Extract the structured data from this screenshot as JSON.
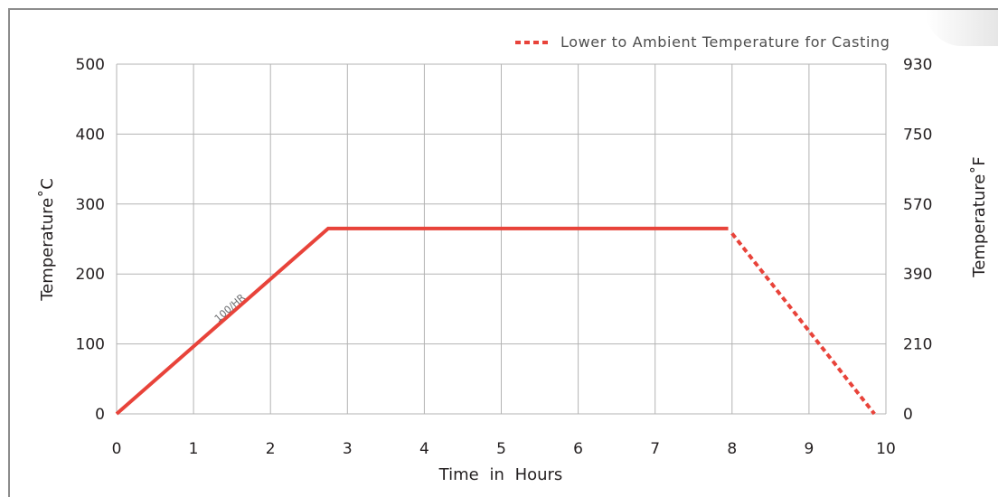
{
  "chart_data": {
    "type": "line",
    "xlabel": "Time in Hours",
    "ylabel": "Temperature˚C",
    "ylabel_right": "Temperature˚F",
    "xlim": [
      0,
      10
    ],
    "ylim": [
      0,
      500
    ],
    "x_ticks": [
      "0",
      "1",
      "2",
      "3",
      "4",
      "5",
      "6",
      "7",
      "8",
      "9",
      "10"
    ],
    "y_ticks": [
      "0",
      "100",
      "200",
      "300",
      "400",
      "500"
    ],
    "y_right_ticks": [
      "0",
      "210",
      "390",
      "570",
      "750",
      "930"
    ],
    "grid": true,
    "legend_position": "top-right",
    "series": [
      {
        "style": "solid",
        "color": "#e8433a",
        "x": [
          0,
          2.75,
          7.95
        ],
        "y": [
          0,
          265,
          265
        ]
      },
      {
        "name": "Lower to Ambient Temperature for Casting",
        "style": "dotted",
        "color": "#e8433a",
        "x": [
          8.0,
          9.85
        ],
        "y": [
          258,
          0
        ]
      }
    ],
    "annotations": [
      {
        "text": "100/HR",
        "x": 1.5,
        "y": 140
      }
    ]
  }
}
